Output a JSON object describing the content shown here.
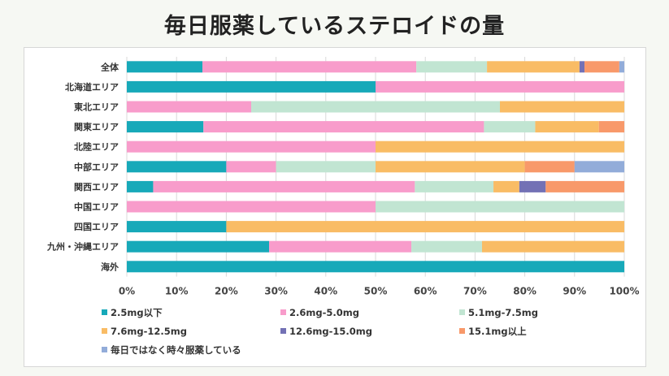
{
  "page_title": "毎日服薬しているステロイドの量",
  "chart_data": {
    "type": "bar",
    "orientation": "horizontal",
    "stacked": true,
    "title": "毎日服薬しているステロイドの量",
    "xlim": [
      0,
      100
    ],
    "xticks": [
      "0%",
      "10%",
      "20%",
      "30%",
      "40%",
      "50%",
      "60%",
      "70%",
      "80%",
      "90%",
      "100%"
    ],
    "grid": true,
    "legend_position": "bottom",
    "categories": [
      "全体",
      "北海道エリア",
      "東北エリア",
      "関東エリア",
      "北陸エリア",
      "中部エリア",
      "関西エリア",
      "中国エリア",
      "四国エリア",
      "九州・沖縄エリア",
      "海外"
    ],
    "series": [
      {
        "name": "2.5mg以下",
        "color": "#17a9b9",
        "values": [
          15.2,
          50,
          0,
          15.4,
          0,
          20,
          5.3,
          0,
          20,
          28.6,
          100
        ]
      },
      {
        "name": "2.6mg-5.0mg",
        "color": "#f89ccb",
        "values": [
          43.0,
          50,
          25,
          56.4,
          50,
          10,
          52.6,
          50,
          0,
          28.6,
          0
        ]
      },
      {
        "name": "5.1mg-7.5mg",
        "color": "#c1e5d2",
        "values": [
          14.2,
          0,
          50,
          10.3,
          0,
          20,
          15.8,
          50,
          0,
          14.2,
          0
        ]
      },
      {
        "name": "7.6mg-12.5mg",
        "color": "#f9bc65",
        "values": [
          18.6,
          0,
          25,
          12.8,
          50,
          30,
          5.2,
          0,
          80,
          28.6,
          0
        ]
      },
      {
        "name": "12.6mg-15.0mg",
        "color": "#7371b5",
        "values": [
          1.0,
          0,
          0,
          0,
          0,
          0,
          5.3,
          0,
          0,
          0,
          0
        ]
      },
      {
        "name": "15.1mg以上",
        "color": "#f8996a",
        "values": [
          7.0,
          0,
          0,
          5.1,
          0,
          10,
          15.8,
          0,
          0,
          0,
          0
        ]
      },
      {
        "name": "毎日ではなく時々服薬している",
        "color": "#92acd9",
        "values": [
          1.0,
          0,
          0,
          0,
          0,
          10,
          0,
          0,
          0,
          0,
          0
        ]
      }
    ]
  }
}
